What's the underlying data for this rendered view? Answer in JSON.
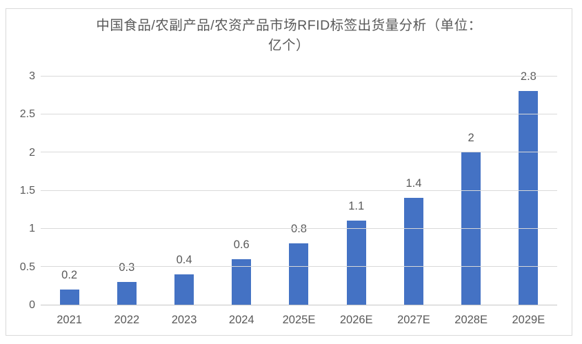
{
  "chart_data": {
    "type": "bar",
    "title": "中国食品/农副产品/农资产品市场RFID标签出货量分析（单位：亿个）",
    "title_line1": "中国食品/农副产品/农资产品市场RFID标签出货量分析（单位：",
    "title_line2": "亿个）",
    "categories": [
      "2021",
      "2022",
      "2023",
      "2024",
      "2025E",
      "2026E",
      "2027E",
      "2028E",
      "2029E"
    ],
    "values": [
      0.2,
      0.3,
      0.4,
      0.6,
      0.8,
      1.1,
      1.4,
      2,
      2.8
    ],
    "value_labels": [
      "0.2",
      "0.3",
      "0.4",
      "0.6",
      "0.8",
      "1.1",
      "1.4",
      "2",
      "2.8"
    ],
    "xlabel": "",
    "ylabel": "",
    "ylim": [
      0,
      3
    ],
    "ytick_interval": 0.5,
    "ytick_labels": [
      "0",
      "0.5",
      "1",
      "1.5",
      "2",
      "2.5",
      "3"
    ],
    "grid": true,
    "legend": "none",
    "colors": {
      "bar": "#4472C4",
      "gridline": "#D9D9D9",
      "axis_line": "#C6C6C6",
      "text": "#595959",
      "panel_border": "#D9D9D9",
      "background": "#FFFFFF"
    }
  }
}
